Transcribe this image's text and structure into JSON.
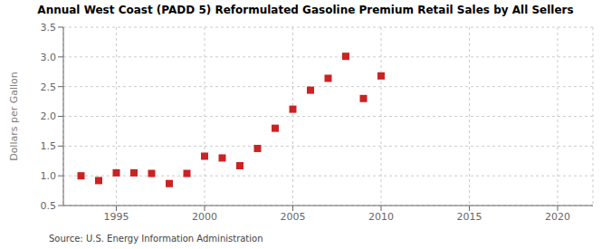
{
  "chart_data": {
    "type": "scatter",
    "title": "Annual West Coast (PADD 5) Reformulated Gasoline Premium Retail Sales by All Sellers",
    "ylabel": "Dollars per Gallon",
    "annotations": [
      "Source: U.S. Energy Information Administration"
    ],
    "x": [
      1993,
      1994,
      1995,
      1996,
      1997,
      1998,
      1999,
      2000,
      2001,
      2002,
      2003,
      2004,
      2005,
      2006,
      2007,
      2008,
      2009,
      2010
    ],
    "values": [
      1.0,
      0.92,
      1.05,
      1.05,
      1.04,
      0.87,
      1.04,
      1.33,
      1.3,
      1.17,
      1.46,
      1.8,
      2.12,
      2.44,
      2.64,
      3.01,
      2.3,
      2.68
    ],
    "color": "#cc2222",
    "marker": "square",
    "xlim": [
      1992,
      2022
    ],
    "ylim": [
      0.5,
      3.5
    ],
    "xticks": [
      1995,
      2000,
      2005,
      2010,
      2015,
      2020
    ],
    "yticks": [
      0.5,
      {
        "value": 1.0,
        "label": "1.0"
      },
      1.5,
      {
        "value": 2.0,
        "label": "2.0"
      },
      2.5,
      {
        "value": 3.0,
        "label": "3.0"
      },
      3.5
    ],
    "grid": true
  }
}
